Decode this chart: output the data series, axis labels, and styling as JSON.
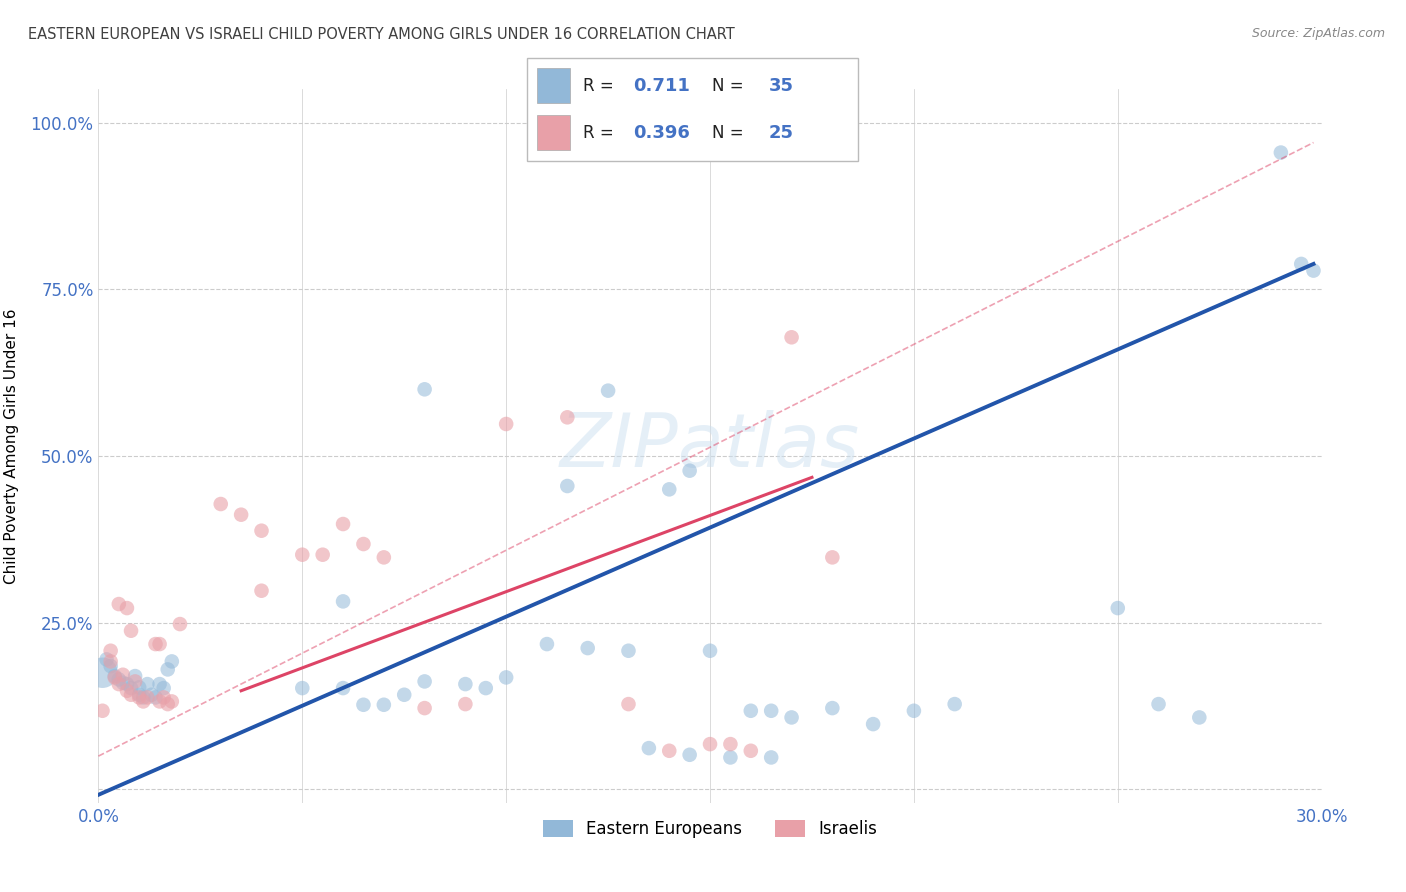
{
  "title": "EASTERN EUROPEAN VS ISRAELI CHILD POVERTY AMONG GIRLS UNDER 16 CORRELATION CHART",
  "source": "Source: ZipAtlas.com",
  "ylabel": "Child Poverty Among Girls Under 16",
  "watermark": "ZIPatlas",
  "xlim": [
    0.0,
    0.3
  ],
  "ylim": [
    -0.02,
    1.05
  ],
  "xticks": [
    0.0,
    0.05,
    0.1,
    0.15,
    0.2,
    0.25,
    0.3
  ],
  "xticklabels": [
    "0.0%",
    "",
    "",
    "",
    "",
    "",
    "30.0%"
  ],
  "yticks": [
    0.0,
    0.25,
    0.5,
    0.75,
    1.0
  ],
  "yticklabels": [
    "",
    "25.0%",
    "50.0%",
    "75.0%",
    "100.0%"
  ],
  "blue_color": "#92b8d8",
  "pink_color": "#e8a0a8",
  "blue_line_color": "#2255aa",
  "pink_line_color": "#dd4466",
  "axis_label_color": "#4472c4",
  "title_color": "#404040",
  "grid_color": "#cccccc",
  "eastern_europeans": [
    [
      0.001,
      0.175
    ],
    [
      0.002,
      0.195
    ],
    [
      0.003,
      0.185
    ],
    [
      0.004,
      0.17
    ],
    [
      0.005,
      0.165
    ],
    [
      0.006,
      0.16
    ],
    [
      0.007,
      0.158
    ],
    [
      0.008,
      0.152
    ],
    [
      0.009,
      0.17
    ],
    [
      0.01,
      0.142
    ],
    [
      0.01,
      0.153
    ],
    [
      0.011,
      0.138
    ],
    [
      0.012,
      0.158
    ],
    [
      0.013,
      0.142
    ],
    [
      0.014,
      0.138
    ],
    [
      0.015,
      0.158
    ],
    [
      0.016,
      0.152
    ],
    [
      0.017,
      0.18
    ],
    [
      0.018,
      0.192
    ],
    [
      0.05,
      0.152
    ],
    [
      0.06,
      0.152
    ],
    [
      0.065,
      0.127
    ],
    [
      0.07,
      0.127
    ],
    [
      0.075,
      0.142
    ],
    [
      0.08,
      0.162
    ],
    [
      0.09,
      0.158
    ],
    [
      0.095,
      0.152
    ],
    [
      0.1,
      0.168
    ],
    [
      0.11,
      0.218
    ],
    [
      0.12,
      0.212
    ],
    [
      0.13,
      0.208
    ],
    [
      0.15,
      0.208
    ],
    [
      0.16,
      0.118
    ],
    [
      0.165,
      0.118
    ],
    [
      0.17,
      0.108
    ],
    [
      0.18,
      0.122
    ],
    [
      0.19,
      0.098
    ],
    [
      0.2,
      0.118
    ],
    [
      0.21,
      0.128
    ],
    [
      0.06,
      0.282
    ],
    [
      0.08,
      0.6
    ],
    [
      0.115,
      0.455
    ],
    [
      0.14,
      0.45
    ],
    [
      0.145,
      0.478
    ],
    [
      0.125,
      0.598
    ],
    [
      0.135,
      0.062
    ],
    [
      0.145,
      0.052
    ],
    [
      0.155,
      0.048
    ],
    [
      0.165,
      0.048
    ],
    [
      0.25,
      0.272
    ],
    [
      0.26,
      0.128
    ],
    [
      0.27,
      0.108
    ],
    [
      0.29,
      0.955
    ],
    [
      0.295,
      0.788
    ],
    [
      0.298,
      0.778
    ]
  ],
  "israelis": [
    [
      0.001,
      0.118
    ],
    [
      0.003,
      0.208
    ],
    [
      0.003,
      0.192
    ],
    [
      0.004,
      0.168
    ],
    [
      0.005,
      0.158
    ],
    [
      0.006,
      0.172
    ],
    [
      0.007,
      0.148
    ],
    [
      0.008,
      0.142
    ],
    [
      0.009,
      0.162
    ],
    [
      0.01,
      0.138
    ],
    [
      0.011,
      0.132
    ],
    [
      0.012,
      0.138
    ],
    [
      0.015,
      0.132
    ],
    [
      0.016,
      0.138
    ],
    [
      0.017,
      0.128
    ],
    [
      0.018,
      0.132
    ],
    [
      0.005,
      0.278
    ],
    [
      0.007,
      0.272
    ],
    [
      0.008,
      0.238
    ],
    [
      0.014,
      0.218
    ],
    [
      0.015,
      0.218
    ],
    [
      0.02,
      0.248
    ],
    [
      0.03,
      0.428
    ],
    [
      0.035,
      0.412
    ],
    [
      0.04,
      0.388
    ],
    [
      0.04,
      0.298
    ],
    [
      0.05,
      0.352
    ],
    [
      0.055,
      0.352
    ],
    [
      0.06,
      0.398
    ],
    [
      0.065,
      0.368
    ],
    [
      0.07,
      0.348
    ],
    [
      0.08,
      0.122
    ],
    [
      0.09,
      0.128
    ],
    [
      0.1,
      0.548
    ],
    [
      0.115,
      0.558
    ],
    [
      0.13,
      0.128
    ],
    [
      0.14,
      0.058
    ],
    [
      0.15,
      0.068
    ],
    [
      0.155,
      0.068
    ],
    [
      0.16,
      0.058
    ],
    [
      0.17,
      0.678
    ],
    [
      0.18,
      0.348
    ]
  ],
  "blue_line": [
    [
      0.0,
      -0.008
    ],
    [
      0.298,
      0.788
    ]
  ],
  "pink_line": [
    [
      0.035,
      0.148
    ],
    [
      0.175,
      0.468
    ]
  ],
  "pink_line_dashed": [
    [
      0.0,
      0.05
    ],
    [
      0.298,
      0.97
    ]
  ],
  "dot_size_regular": 110,
  "dot_size_big": 480
}
